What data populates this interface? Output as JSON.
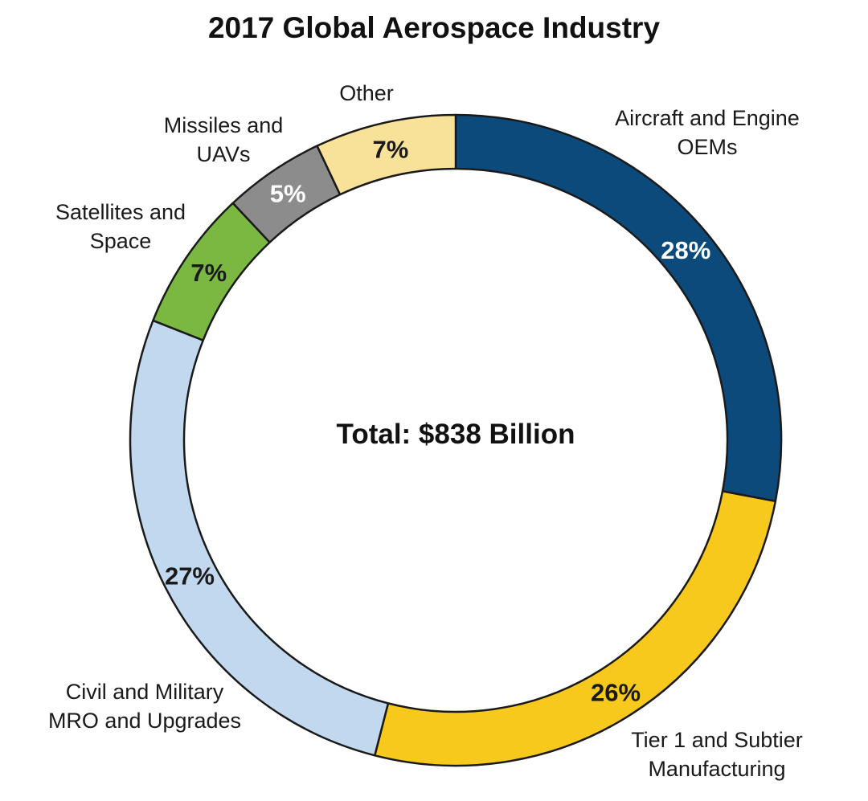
{
  "chart_data": {
    "type": "pie",
    "variant": "donut",
    "title": "2017 Global Aerospace Industry",
    "center_label": "Total: $838 Billion",
    "slices": [
      {
        "label_lines": [
          "Aircraft and Engine",
          "OEMs"
        ],
        "value": 28,
        "value_label": "28%",
        "color": "#0d4a7c",
        "value_label_color": "#ffffff"
      },
      {
        "label_lines": [
          "Tier 1 and Subtier",
          "Manufacturing"
        ],
        "value": 26,
        "value_label": "26%",
        "color": "#f6c91c",
        "value_label_color": "#1a1a1a"
      },
      {
        "label_lines": [
          "Civil and Military",
          "MRO and Upgrades"
        ],
        "value": 27,
        "value_label": "27%",
        "color": "#c2d8ee",
        "value_label_color": "#1a1a1a"
      },
      {
        "label_lines": [
          "Satellites and",
          "Space"
        ],
        "value": 7,
        "value_label": "7%",
        "color": "#7bb842",
        "value_label_color": "#1a1a1a"
      },
      {
        "label_lines": [
          "Missiles and",
          "UAVs"
        ],
        "value": 5,
        "value_label": "5%",
        "color": "#8c8c8c",
        "value_label_color": "#ffffff"
      },
      {
        "label_lines": [
          "Other"
        ],
        "value": 7,
        "value_label": "7%",
        "color": "#f8e29a",
        "value_label_color": "#1a1a1a"
      }
    ]
  }
}
